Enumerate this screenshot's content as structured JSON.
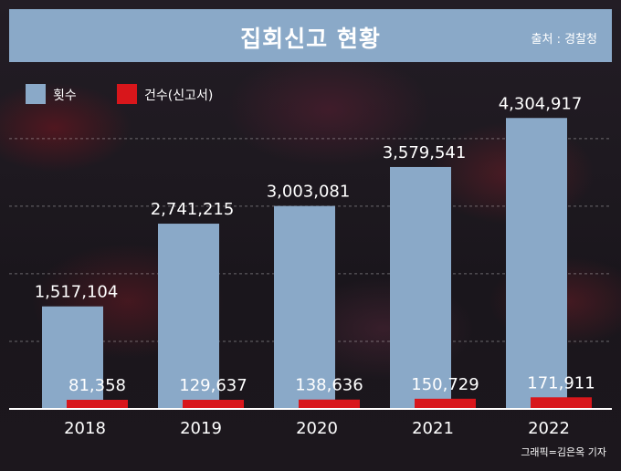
{
  "title": "집회신고 현황",
  "source": "출처 : 경찰청",
  "credit": "그래픽=김은옥 기자",
  "colors": {
    "series_count": "#8aa9c8",
    "series_reports": "#d8161b",
    "title_bg": "#8aa9c8"
  },
  "chart_data": {
    "type": "bar",
    "title": "집회신고 현황",
    "categories": [
      "2018",
      "2019",
      "2020",
      "2021",
      "2022"
    ],
    "series": [
      {
        "name": "횟수",
        "values": [
          1517104,
          2741215,
          3003081,
          3579541,
          4304917
        ],
        "labels": [
          "1,517,104",
          "2,741,215",
          "3,003,081",
          "3,579,541",
          "4,304,917"
        ]
      },
      {
        "name": "건수(신고서)",
        "values": [
          81358,
          129637,
          138636,
          150729,
          171911
        ],
        "labels": [
          "81,358",
          "129,637",
          "138,636",
          "150,729",
          "171,911"
        ]
      }
    ],
    "xlabel": "",
    "ylabel": "",
    "ylim": [
      0,
      4700000
    ],
    "grid": true,
    "legend": "top-left"
  }
}
